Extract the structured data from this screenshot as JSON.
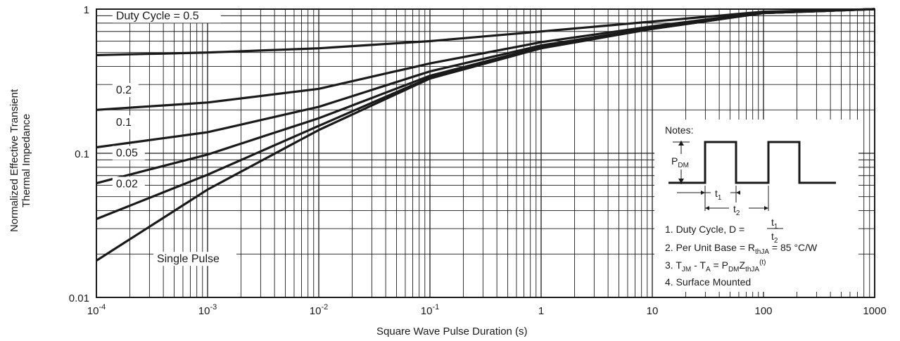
{
  "chart_data": {
    "type": "line",
    "xscale": "log",
    "yscale": "log",
    "xlim": [
      0.0001,
      1000
    ],
    "ylim": [
      0.01,
      1
    ],
    "grid": true,
    "xlabel": "Square Wave Pulse Duration (s)",
    "ylabel_lines": [
      "Normalized Effective Transient",
      "Thermal Impedance"
    ],
    "x_ticks": [
      {
        "value": 0.0001,
        "base": "10",
        "exp": "-4"
      },
      {
        "value": 0.001,
        "base": "10",
        "exp": "-3"
      },
      {
        "value": 0.01,
        "base": "10",
        "exp": "-2"
      },
      {
        "value": 0.1,
        "base": "10",
        "exp": "-1"
      },
      {
        "value": 1,
        "base": "1",
        "exp": ""
      },
      {
        "value": 10,
        "base": "10",
        "exp": ""
      },
      {
        "value": 100,
        "base": "100",
        "exp": ""
      },
      {
        "value": 1000,
        "base": "1000",
        "exp": ""
      }
    ],
    "y_ticks": [
      {
        "value": 0.01,
        "label": "0.01"
      },
      {
        "value": 0.1,
        "label": "0.1"
      },
      {
        "value": 1,
        "label": "1"
      }
    ],
    "series": [
      {
        "name": "Duty Cycle = 0.5",
        "label_at": [
          0.00015,
          0.85
        ],
        "x": [
          0.0001,
          0.001,
          0.01,
          0.1,
          1,
          10,
          100,
          1000
        ],
        "y": [
          0.48,
          0.5,
          0.535,
          0.6,
          0.7,
          0.82,
          0.96,
          1.0
        ]
      },
      {
        "name": "0.2",
        "label_at": [
          0.00015,
          0.26
        ],
        "x": [
          0.0001,
          0.001,
          0.01,
          0.1,
          1,
          10,
          100,
          1000
        ],
        "y": [
          0.2,
          0.225,
          0.28,
          0.42,
          0.59,
          0.76,
          0.95,
          1.0
        ]
      },
      {
        "name": "0.1",
        "label_at": [
          0.00015,
          0.155
        ],
        "x": [
          0.0001,
          0.001,
          0.01,
          0.1,
          1,
          10,
          100,
          1000
        ],
        "y": [
          0.11,
          0.14,
          0.21,
          0.37,
          0.56,
          0.74,
          0.94,
          1.0
        ]
      },
      {
        "name": "0.05",
        "label_at": [
          0.00015,
          0.095
        ],
        "x": [
          0.0001,
          0.001,
          0.01,
          0.1,
          1,
          10,
          100,
          1000
        ],
        "y": [
          0.062,
          0.098,
          0.175,
          0.345,
          0.545,
          0.735,
          0.94,
          1.0
        ]
      },
      {
        "name": "0.02",
        "label_at": [
          0.00015,
          0.058
        ],
        "x": [
          0.0001,
          0.001,
          0.01,
          0.1,
          1,
          10,
          100,
          1000
        ],
        "y": [
          0.035,
          0.071,
          0.155,
          0.335,
          0.54,
          0.73,
          0.94,
          1.0
        ]
      },
      {
        "name": "Single Pulse",
        "label_at": [
          0.00035,
          0.0175
        ],
        "x": [
          0.0001,
          0.001,
          0.01,
          0.1,
          1,
          10,
          100,
          1000
        ],
        "y": [
          0.018,
          0.056,
          0.145,
          0.33,
          0.535,
          0.73,
          0.94,
          1.0
        ]
      }
    ],
    "notes": {
      "title": "Notes:",
      "pdm": "P",
      "pdm_sub": "DM",
      "t1": "t",
      "t1_sub": "1",
      "t2": "t",
      "t2_sub": "2",
      "line1": "1. Duty Cycle, D =",
      "frac_num": "t",
      "frac_num_sub": "1",
      "frac_den": "t",
      "frac_den_sub": "2",
      "line2_a": "2. Per Unit Base = R",
      "line2_sub": "thJA",
      "line2_b": " = 85 °C/W",
      "line3_a": "3. T",
      "line3_sub1": "JM",
      "line3_b": " - T",
      "line3_sub2": "A",
      "line3_c": " = P",
      "line3_sub3": "DM",
      "line3_d": "Z",
      "line3_sub4": "thJA",
      "line3_sup": "(t)",
      "line4": "4. Surface Mounted"
    }
  }
}
